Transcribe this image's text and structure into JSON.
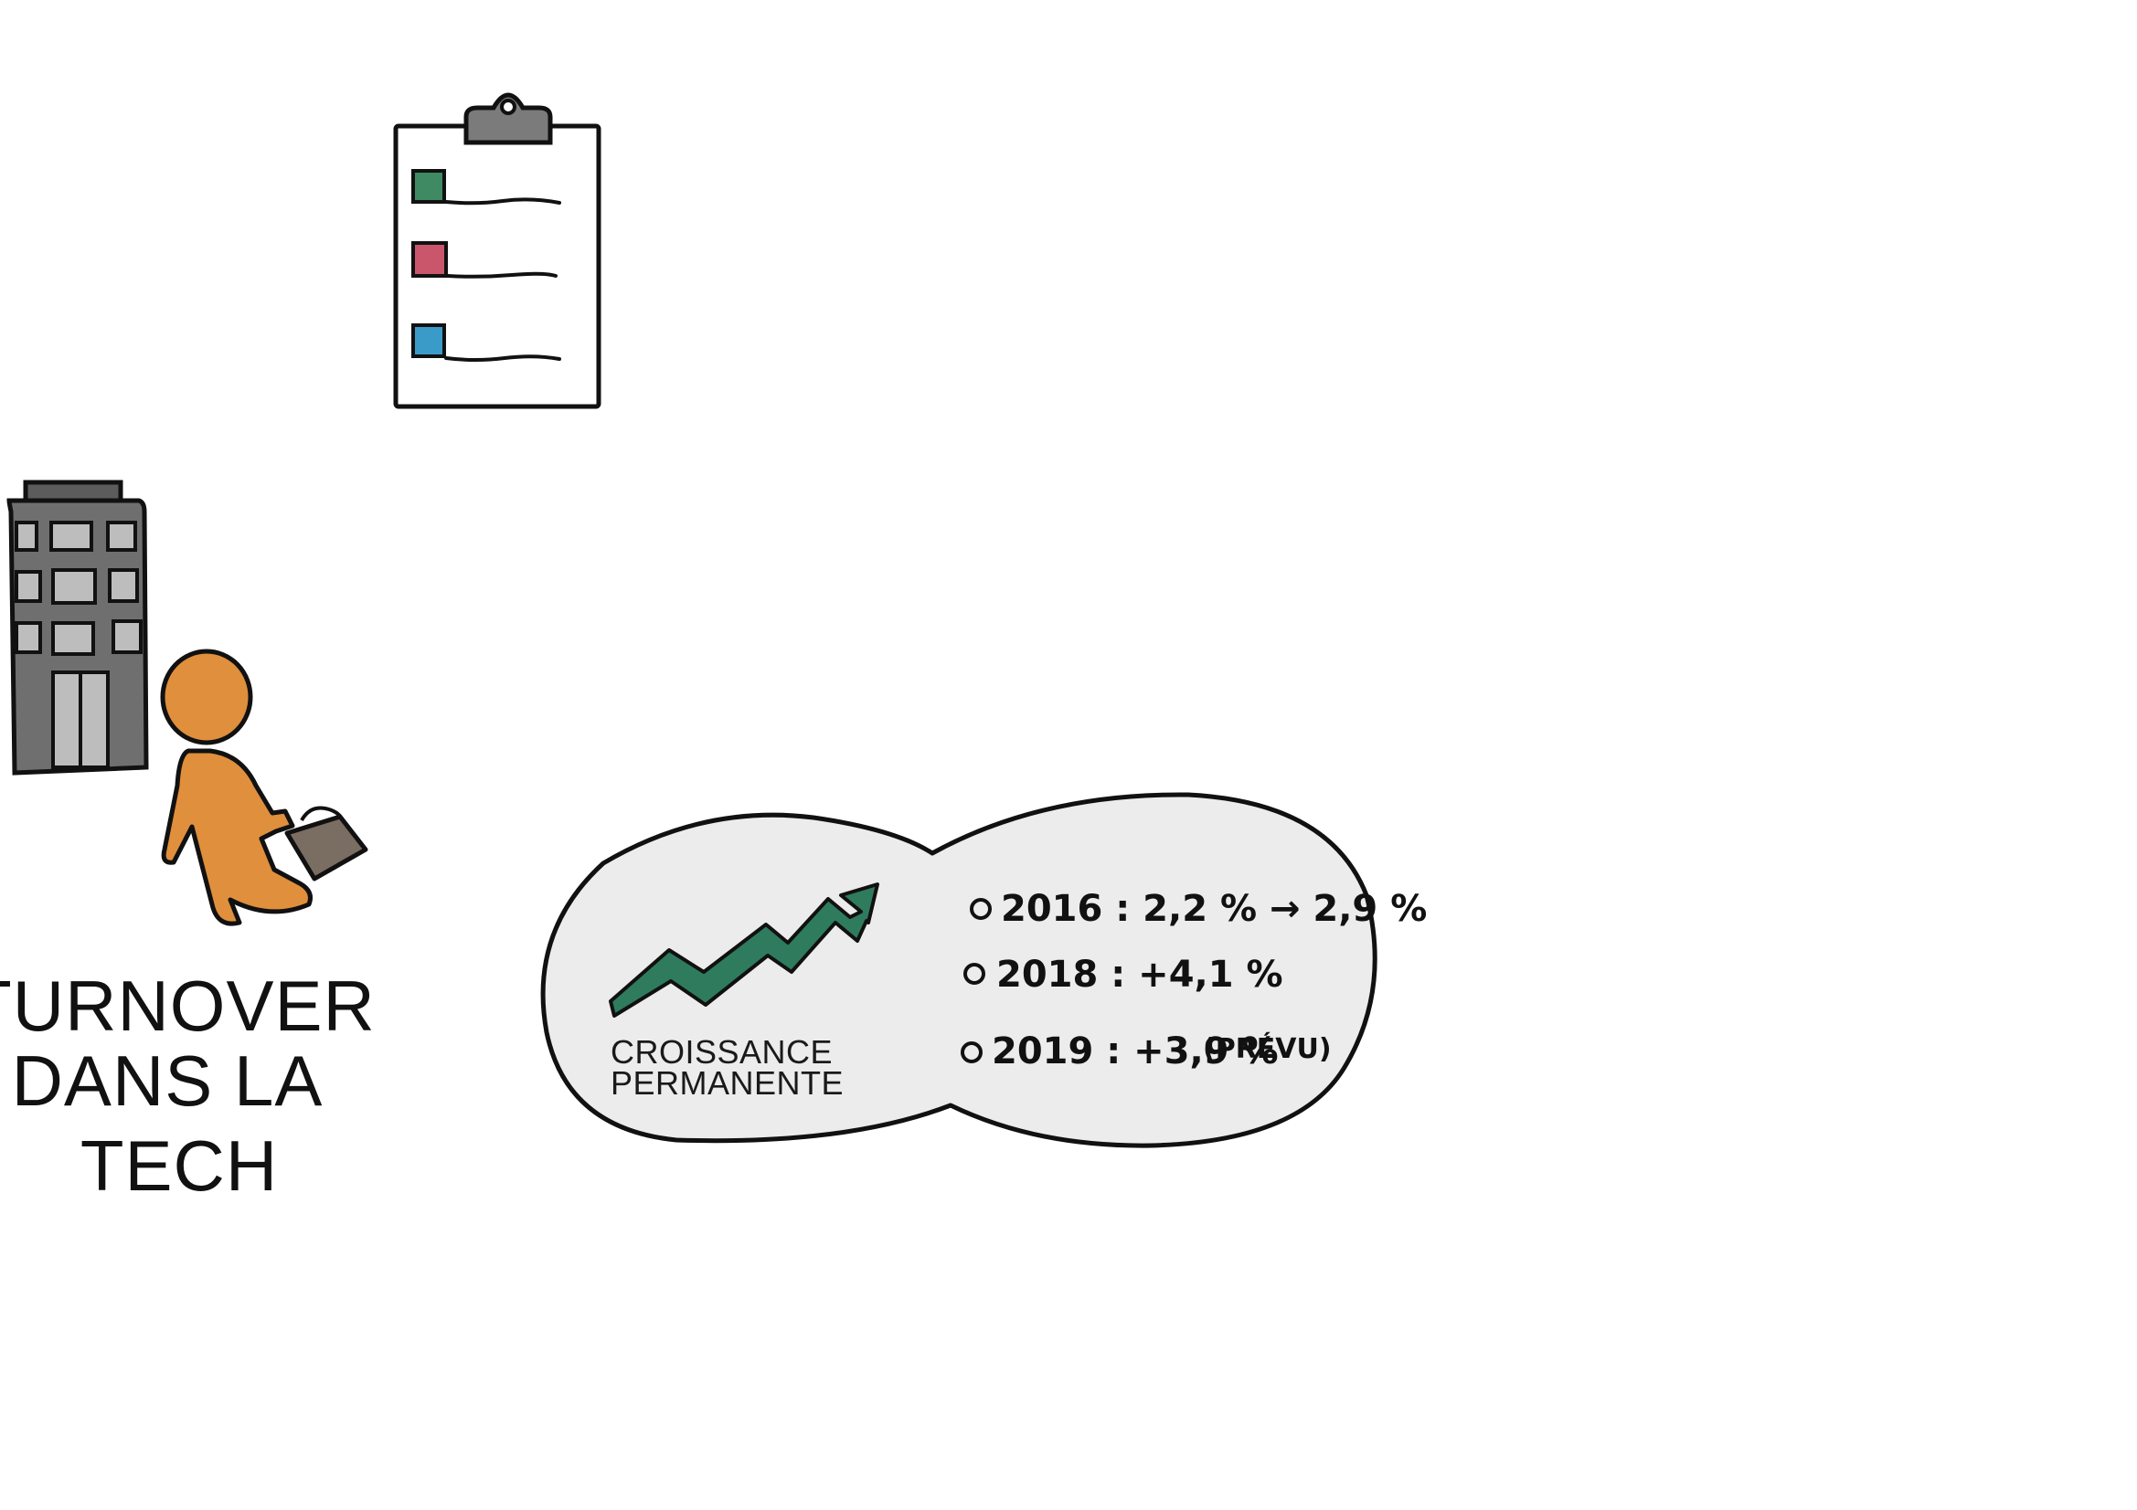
{
  "title": {
    "line1": "TURNOVER",
    "line2": "DANS LA",
    "line3": "TECH"
  },
  "growth": {
    "label_line1": "CROISSANCE",
    "label_line2": "PERMANENTE",
    "stats": [
      {
        "text": "2016 : 2,2 % → 2,9 %"
      },
      {
        "text": "2018 : +4,1 %"
      },
      {
        "text": "2019 : +3,9 %",
        "note": "(PRÉVU)"
      }
    ]
  },
  "icons": {
    "clipboard": "clipboard-checklist-icon",
    "building": "office-building-icon",
    "person": "walking-person-icon",
    "arrow": "trend-arrow-icon"
  },
  "colors": {
    "checkbox_1": "#3f8a63",
    "checkbox_2": "#c9566b",
    "checkbox_3": "#3a9bc8",
    "person": "#e08f3c",
    "building": "#6f6f6f",
    "arrow": "#2f7b5d",
    "bubble": "#ececec",
    "briefcase": "#7a6d62"
  }
}
